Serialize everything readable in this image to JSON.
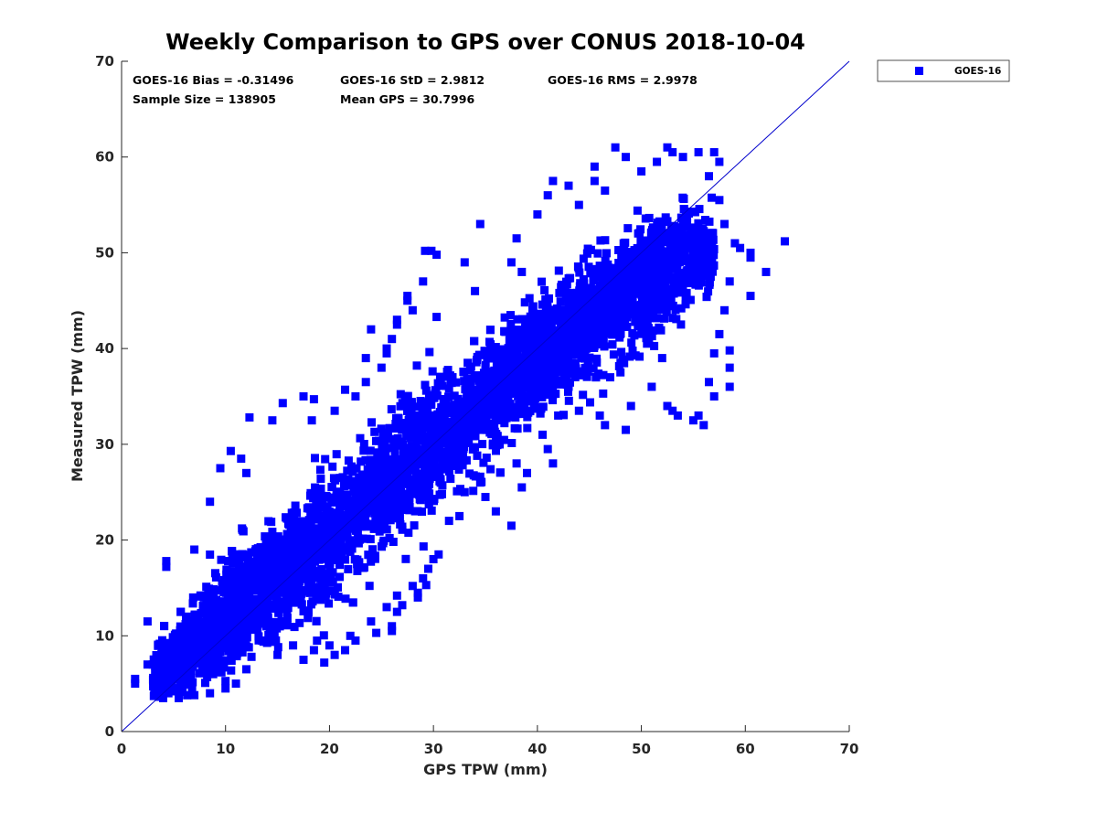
{
  "chart_data": {
    "type": "scatter",
    "title": "Weekly Comparison to GPS over CONUS 2018-10-04",
    "xlabel": "GPS TPW (mm)",
    "ylabel": "Measured TPW (mm)",
    "xlim": [
      0,
      70
    ],
    "ylim": [
      0,
      70
    ],
    "xticks": [
      0,
      10,
      20,
      30,
      40,
      50,
      60,
      70
    ],
    "yticks": [
      0,
      10,
      20,
      30,
      40,
      50,
      60,
      70
    ],
    "xtick_labels": [
      "0",
      "10",
      "20",
      "30",
      "40",
      "50",
      "60",
      "70"
    ],
    "ytick_labels": [
      "0",
      "10",
      "20",
      "30",
      "40",
      "50",
      "60",
      "70"
    ],
    "grid": false,
    "legend": {
      "position": "top-right-outside"
    },
    "reference_line": {
      "type": "one-to-one",
      "from": [
        0,
        0
      ],
      "to": [
        70,
        70
      ],
      "color": "#0000cc"
    },
    "stats": [
      "GOES-16 Bias = -0.31496",
      "GOES-16 StD = 2.9812",
      "GOES-16 RMS = 2.9978",
      "Sample Size = 138905",
      "Mean GPS = 30.7996"
    ],
    "series": [
      {
        "name": "GOES-16",
        "color": "#0000ff",
        "marker": "square",
        "core_band": {
          "description_points": [
            [
              3,
              5.5
            ],
            [
              10,
              12
            ],
            [
              20,
              20.5
            ],
            [
              30,
              30
            ],
            [
              40,
              39
            ],
            [
              50,
              47
            ],
            [
              55,
              50
            ]
          ],
          "half_width": [
            2.5,
            4.5,
            5.5,
            5.5,
            5.0,
            5.5,
            4.0
          ]
        },
        "outliers": [
          [
            1.3,
            5.5
          ],
          [
            1.3,
            5
          ],
          [
            2.5,
            11.5
          ],
          [
            4.3,
            17.8
          ],
          [
            4.3,
            17.2
          ],
          [
            7,
            19
          ],
          [
            8.5,
            24
          ],
          [
            9.5,
            27.5
          ],
          [
            10.5,
            29.3
          ],
          [
            11.5,
            28.5
          ],
          [
            12,
            27
          ],
          [
            12.3,
            32.8
          ],
          [
            14.5,
            32.5
          ],
          [
            15.5,
            34.3
          ],
          [
            17.5,
            35
          ],
          [
            18.5,
            34.7
          ],
          [
            18.3,
            32.5
          ],
          [
            20.5,
            33.5
          ],
          [
            21.5,
            35.7
          ],
          [
            22.5,
            35
          ],
          [
            23.5,
            36.5
          ],
          [
            25,
            38
          ],
          [
            25.5,
            39.5
          ],
          [
            26.5,
            42.5
          ],
          [
            27.5,
            45.5
          ],
          [
            28,
            44
          ],
          [
            26,
            41
          ],
          [
            27.5,
            45
          ],
          [
            26.5,
            43
          ],
          [
            29.2,
            50.2
          ],
          [
            29.8,
            50.2
          ],
          [
            30.3,
            49.8
          ],
          [
            30.3,
            43.3
          ],
          [
            29,
            47
          ],
          [
            25.5,
            40
          ],
          [
            24,
            42
          ],
          [
            23.5,
            39
          ],
          [
            33,
            49
          ],
          [
            34.5,
            53
          ],
          [
            34,
            46
          ],
          [
            37.5,
            49
          ],
          [
            38,
            51.5
          ],
          [
            38.5,
            48
          ],
          [
            40,
            54
          ],
          [
            41,
            56
          ],
          [
            41.5,
            57.5
          ],
          [
            43,
            57
          ],
          [
            44,
            55
          ],
          [
            45.5,
            57.5
          ],
          [
            46.5,
            56.5
          ],
          [
            45.5,
            59
          ],
          [
            47.5,
            61
          ],
          [
            48.5,
            60
          ],
          [
            50,
            58.5
          ],
          [
            51.5,
            59.5
          ],
          [
            52.5,
            61
          ],
          [
            53,
            60.5
          ],
          [
            54,
            60
          ],
          [
            55.5,
            60.5
          ],
          [
            56.5,
            58
          ],
          [
            57.5,
            59.5
          ],
          [
            57,
            60.5
          ],
          [
            57.5,
            55.5
          ],
          [
            58,
            53
          ],
          [
            59,
            51
          ],
          [
            59.5,
            50.5
          ],
          [
            60.5,
            50
          ],
          [
            60.5,
            49.5
          ],
          [
            58.5,
            47
          ],
          [
            60.5,
            45.5
          ],
          [
            58,
            44
          ],
          [
            57.5,
            41.5
          ],
          [
            57,
            39.5
          ],
          [
            58.5,
            38
          ],
          [
            58.5,
            36
          ],
          [
            58.5,
            39.8
          ],
          [
            56.5,
            36.5
          ],
          [
            57,
            35
          ],
          [
            55.5,
            33
          ],
          [
            56,
            32
          ],
          [
            55,
            32.5
          ],
          [
            53,
            33.5
          ],
          [
            52.5,
            34
          ],
          [
            51,
            36
          ],
          [
            52,
            39
          ],
          [
            53.5,
            33
          ],
          [
            49,
            34
          ],
          [
            48,
            38.5
          ],
          [
            47,
            37
          ],
          [
            46.5,
            32
          ],
          [
            46,
            33
          ],
          [
            48.5,
            31.5
          ],
          [
            44,
            33.5
          ],
          [
            43,
            36
          ],
          [
            42,
            33
          ],
          [
            41,
            29.5
          ],
          [
            41.5,
            28
          ],
          [
            40.5,
            31
          ],
          [
            39,
            27
          ],
          [
            38.5,
            25.5
          ],
          [
            38,
            28
          ],
          [
            37.5,
            21.5
          ],
          [
            36,
            23
          ],
          [
            35,
            24.5
          ],
          [
            34.5,
            26
          ],
          [
            33,
            25
          ],
          [
            32.5,
            22.5
          ],
          [
            31.5,
            22
          ],
          [
            30.5,
            18.5
          ],
          [
            30,
            18
          ],
          [
            29.5,
            17
          ],
          [
            29,
            16
          ],
          [
            29.3,
            15.3
          ],
          [
            28,
            15.2
          ],
          [
            28.5,
            14.5
          ],
          [
            28.5,
            14
          ],
          [
            26.5,
            14.2
          ],
          [
            27,
            13.2
          ],
          [
            26.5,
            12.5
          ],
          [
            25.5,
            13
          ],
          [
            24.5,
            10.3
          ],
          [
            26,
            10.5
          ],
          [
            26,
            11
          ],
          [
            24,
            11.5
          ],
          [
            22.5,
            9.5
          ],
          [
            22,
            10
          ],
          [
            21.5,
            8.5
          ],
          [
            20,
            9
          ],
          [
            19.5,
            7.2
          ],
          [
            20.5,
            8
          ],
          [
            18.5,
            8.5
          ],
          [
            17.5,
            7.5
          ],
          [
            16.5,
            9
          ],
          [
            15,
            8
          ],
          [
            13.5,
            9.5
          ],
          [
            12.5,
            7.8
          ],
          [
            12,
            6.5
          ],
          [
            11,
            5
          ],
          [
            10,
            4.5
          ],
          [
            8.5,
            4
          ],
          [
            7,
            3.8
          ],
          [
            5.5,
            3.5
          ],
          [
            4.5,
            4
          ],
          [
            4,
            3.5
          ],
          [
            3,
            7
          ],
          [
            2.5,
            7
          ],
          [
            63.8,
            51.2
          ],
          [
            62,
            48
          ]
        ]
      }
    ]
  }
}
